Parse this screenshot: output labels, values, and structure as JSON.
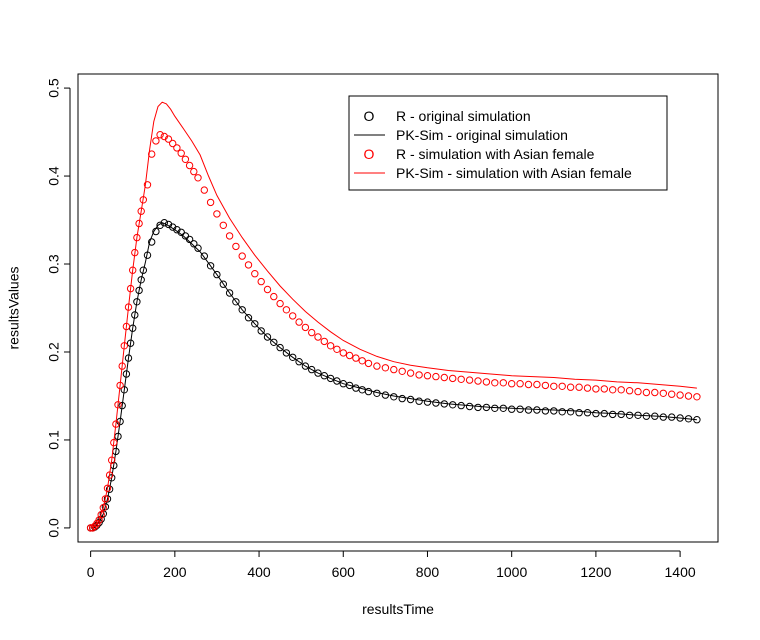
{
  "chart_data": {
    "type": "line",
    "xlabel": "resultsTime",
    "ylabel": "resultsValues",
    "xlim": [
      -30,
      1490
    ],
    "ylim": [
      -0.016,
      0.516
    ],
    "xticks": [
      0,
      200,
      400,
      600,
      800,
      1000,
      1200,
      1400
    ],
    "yticks": [
      0.0,
      0.1,
      0.2,
      0.3,
      0.4,
      0.5
    ],
    "xtick_labels": [
      "0",
      "200",
      "400",
      "600",
      "800",
      "1000",
      "1200",
      "1400"
    ],
    "ytick_labels": [
      "0.0",
      "0.1",
      "0.2",
      "0.3",
      "0.4",
      "0.5"
    ],
    "legend_position": "top-right",
    "series": [
      {
        "name": "R - original simulation",
        "style": "points",
        "marker": "O",
        "color": "#000000",
        "x": [
          0,
          5,
          10,
          15,
          20,
          25,
          30,
          35,
          40,
          45,
          50,
          55,
          60,
          65,
          70,
          75,
          80,
          85,
          90,
          95,
          100,
          105,
          110,
          115,
          120,
          125,
          135,
          145,
          155,
          165,
          175,
          185,
          195,
          205,
          215,
          225,
          235,
          245,
          255,
          270,
          285,
          300,
          315,
          330,
          345,
          360,
          375,
          390,
          405,
          420,
          435,
          450,
          465,
          480,
          495,
          510,
          525,
          540,
          555,
          570,
          585,
          600,
          615,
          630,
          645,
          660,
          680,
          700,
          720,
          740,
          760,
          780,
          800,
          820,
          840,
          860,
          880,
          900,
          920,
          940,
          960,
          980,
          1000,
          1020,
          1040,
          1060,
          1080,
          1100,
          1120,
          1140,
          1160,
          1180,
          1200,
          1220,
          1240,
          1260,
          1280,
          1300,
          1320,
          1340,
          1360,
          1380,
          1400,
          1420,
          1440
        ],
        "y": [
          0.0,
          0.0,
          0.001,
          0.003,
          0.006,
          0.01,
          0.016,
          0.024,
          0.033,
          0.044,
          0.057,
          0.071,
          0.087,
          0.104,
          0.121,
          0.139,
          0.157,
          0.175,
          0.193,
          0.21,
          0.227,
          0.242,
          0.257,
          0.27,
          0.282,
          0.293,
          0.31,
          0.325,
          0.337,
          0.344,
          0.347,
          0.345,
          0.342,
          0.339,
          0.336,
          0.332,
          0.328,
          0.323,
          0.318,
          0.309,
          0.298,
          0.288,
          0.277,
          0.267,
          0.257,
          0.248,
          0.239,
          0.232,
          0.224,
          0.217,
          0.211,
          0.205,
          0.199,
          0.194,
          0.189,
          0.184,
          0.18,
          0.176,
          0.173,
          0.17,
          0.167,
          0.164,
          0.162,
          0.159,
          0.157,
          0.155,
          0.153,
          0.151,
          0.149,
          0.147,
          0.146,
          0.144,
          0.143,
          0.142,
          0.141,
          0.14,
          0.139,
          0.138,
          0.137,
          0.137,
          0.136,
          0.136,
          0.135,
          0.135,
          0.134,
          0.134,
          0.133,
          0.133,
          0.132,
          0.132,
          0.131,
          0.131,
          0.13,
          0.13,
          0.129,
          0.129,
          0.128,
          0.128,
          0.127,
          0.127,
          0.126,
          0.126,
          0.125,
          0.124,
          0.123
        ]
      },
      {
        "name": "PK-Sim - original simulation",
        "style": "line",
        "color": "#000000",
        "x": [
          0,
          10,
          20,
          30,
          40,
          50,
          60,
          70,
          80,
          90,
          100,
          110,
          120,
          130,
          140,
          150,
          160,
          170,
          180,
          190,
          200,
          220,
          240,
          260,
          280,
          300,
          330,
          360,
          390,
          420,
          450,
          480,
          510,
          540,
          570,
          600,
          640,
          680,
          720,
          760,
          800,
          850,
          900,
          950,
          1000,
          1050,
          1100,
          1150,
          1200,
          1250,
          1300,
          1350,
          1400,
          1440
        ],
        "y": [
          0.0,
          0.001,
          0.006,
          0.016,
          0.033,
          0.057,
          0.087,
          0.121,
          0.157,
          0.193,
          0.227,
          0.257,
          0.282,
          0.302,
          0.325,
          0.337,
          0.344,
          0.347,
          0.345,
          0.342,
          0.339,
          0.332,
          0.323,
          0.314,
          0.301,
          0.288,
          0.267,
          0.248,
          0.232,
          0.217,
          0.205,
          0.194,
          0.184,
          0.176,
          0.17,
          0.164,
          0.159,
          0.154,
          0.15,
          0.147,
          0.144,
          0.141,
          0.139,
          0.137,
          0.136,
          0.135,
          0.134,
          0.133,
          0.131,
          0.13,
          0.128,
          0.127,
          0.125,
          0.123
        ]
      },
      {
        "name": "R - simulation with Asian female",
        "style": "points",
        "marker": "O",
        "color": "#ff0000",
        "x": [
          0,
          5,
          10,
          15,
          20,
          25,
          30,
          35,
          40,
          45,
          50,
          55,
          60,
          65,
          70,
          75,
          80,
          85,
          90,
          95,
          100,
          105,
          110,
          115,
          120,
          125,
          135,
          145,
          155,
          165,
          175,
          185,
          195,
          205,
          215,
          225,
          235,
          245,
          255,
          270,
          285,
          300,
          315,
          330,
          345,
          360,
          375,
          390,
          405,
          420,
          435,
          450,
          465,
          480,
          495,
          510,
          525,
          540,
          555,
          570,
          585,
          600,
          615,
          630,
          645,
          660,
          680,
          700,
          720,
          740,
          760,
          780,
          800,
          820,
          840,
          860,
          880,
          900,
          920,
          940,
          960,
          980,
          1000,
          1020,
          1040,
          1060,
          1080,
          1100,
          1120,
          1140,
          1160,
          1180,
          1200,
          1220,
          1240,
          1260,
          1280,
          1300,
          1320,
          1340,
          1360,
          1380,
          1400,
          1420,
          1440
        ],
        "y": [
          0.0,
          0.0,
          0.002,
          0.005,
          0.009,
          0.015,
          0.023,
          0.033,
          0.045,
          0.06,
          0.077,
          0.097,
          0.118,
          0.14,
          0.162,
          0.184,
          0.207,
          0.229,
          0.251,
          0.272,
          0.293,
          0.313,
          0.33,
          0.346,
          0.36,
          0.373,
          0.39,
          0.425,
          0.44,
          0.447,
          0.445,
          0.442,
          0.437,
          0.432,
          0.426,
          0.419,
          0.412,
          0.405,
          0.398,
          0.384,
          0.37,
          0.357,
          0.344,
          0.332,
          0.32,
          0.309,
          0.299,
          0.289,
          0.28,
          0.271,
          0.263,
          0.255,
          0.248,
          0.241,
          0.234,
          0.228,
          0.222,
          0.217,
          0.212,
          0.207,
          0.203,
          0.199,
          0.196,
          0.193,
          0.19,
          0.187,
          0.184,
          0.182,
          0.18,
          0.178,
          0.176,
          0.174,
          0.173,
          0.172,
          0.171,
          0.17,
          0.169,
          0.168,
          0.167,
          0.166,
          0.165,
          0.165,
          0.164,
          0.164,
          0.163,
          0.163,
          0.162,
          0.161,
          0.161,
          0.16,
          0.16,
          0.159,
          0.158,
          0.158,
          0.157,
          0.157,
          0.156,
          0.155,
          0.154,
          0.154,
          0.153,
          0.152,
          0.151,
          0.15,
          0.149
        ]
      },
      {
        "name": "PK-Sim - simulation with Asian female",
        "style": "line",
        "color": "#ff0000",
        "x": [
          0,
          10,
          20,
          30,
          40,
          50,
          60,
          70,
          80,
          90,
          100,
          110,
          120,
          130,
          140,
          150,
          160,
          170,
          180,
          190,
          200,
          220,
          240,
          260,
          280,
          300,
          330,
          360,
          390,
          420,
          450,
          480,
          510,
          540,
          570,
          600,
          640,
          680,
          720,
          760,
          800,
          850,
          900,
          950,
          1000,
          1050,
          1100,
          1150,
          1200,
          1250,
          1300,
          1350,
          1400,
          1440
        ],
        "y": [
          0.0,
          0.002,
          0.009,
          0.023,
          0.045,
          0.077,
          0.118,
          0.162,
          0.207,
          0.251,
          0.293,
          0.33,
          0.36,
          0.39,
          0.43,
          0.462,
          0.479,
          0.484,
          0.482,
          0.476,
          0.468,
          0.454,
          0.44,
          0.424,
          0.4,
          0.378,
          0.352,
          0.33,
          0.31,
          0.292,
          0.275,
          0.26,
          0.246,
          0.234,
          0.223,
          0.213,
          0.203,
          0.195,
          0.189,
          0.185,
          0.182,
          0.179,
          0.177,
          0.175,
          0.173,
          0.172,
          0.171,
          0.169,
          0.168,
          0.166,
          0.165,
          0.163,
          0.161,
          0.159
        ]
      }
    ]
  }
}
